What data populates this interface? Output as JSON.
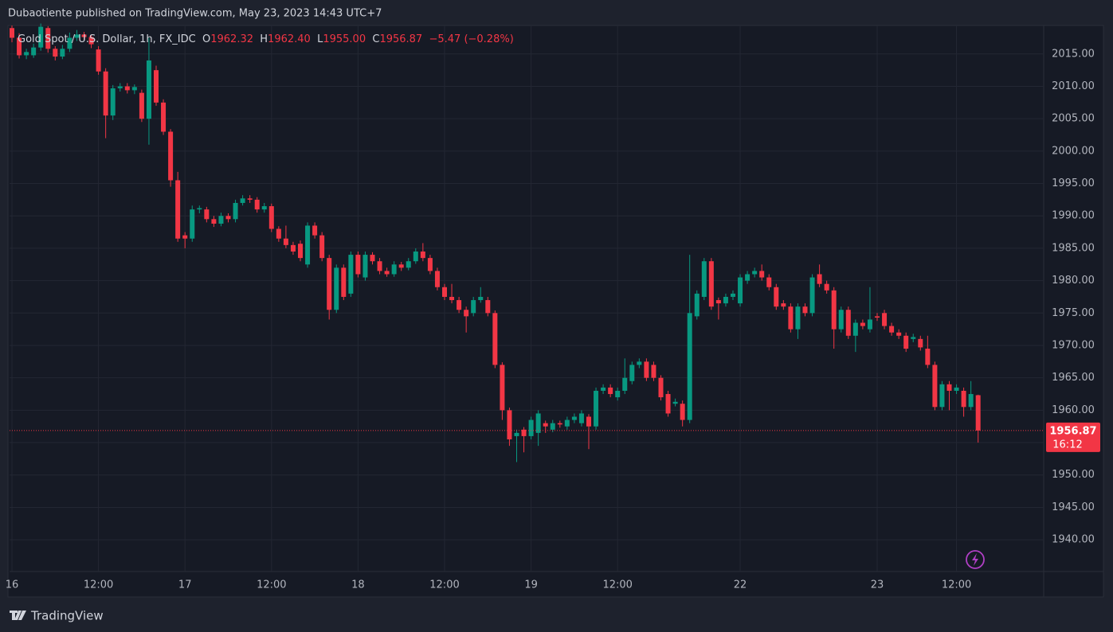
{
  "header": {
    "published": "Dubaotiente published on TradingView.com, May 23, 2023 14:43 UTC+7"
  },
  "footer": {
    "brand": "TradingView"
  },
  "chart_data": {
    "type": "candlestick",
    "legend": {
      "symbol": "Gold Spot / U.S. Dollar, 1h, FX_IDC",
      "o_label": "O",
      "o": "1962.32",
      "h_label": "H",
      "h": "1962.40",
      "l_label": "L",
      "l": "1955.00",
      "c_label": "C",
      "c": "1956.87",
      "change": "−5.47 (−0.28%)"
    },
    "countdown": "16:12",
    "up_color": "#089981",
    "down_color": "#f23645",
    "grid": true,
    "ylim": [
      1935.1,
      2019.4
    ],
    "yticks": [
      {
        "value": 1940,
        "label": "1940.00"
      },
      {
        "value": 1945,
        "label": "1945.00"
      },
      {
        "value": 1950,
        "label": "1950.00"
      },
      {
        "value": 1955,
        "label": "1955.00"
      },
      {
        "value": 1960,
        "label": "1960.00"
      },
      {
        "value": 1965,
        "label": "1965.00"
      },
      {
        "value": 1970,
        "label": "1970.00"
      },
      {
        "value": 1975,
        "label": "1975.00"
      },
      {
        "value": 1980,
        "label": "1980.00"
      },
      {
        "value": 1985,
        "label": "1985.00"
      },
      {
        "value": 1990,
        "label": "1990.00"
      },
      {
        "value": 1995,
        "label": "1995.00"
      },
      {
        "value": 2000,
        "label": "2000.00"
      },
      {
        "value": 2005,
        "label": "2005.00"
      },
      {
        "value": 2010,
        "label": "2010.00"
      },
      {
        "value": 2015,
        "label": "2015.00"
      }
    ],
    "categories": [
      "16",
      null,
      null,
      null,
      null,
      null,
      null,
      null,
      null,
      null,
      null,
      null,
      "12:00",
      null,
      null,
      null,
      null,
      null,
      null,
      null,
      null,
      null,
      null,
      null,
      "17",
      null,
      null,
      null,
      null,
      null,
      null,
      null,
      null,
      null,
      null,
      null,
      "12:00",
      null,
      null,
      null,
      null,
      null,
      null,
      null,
      null,
      null,
      null,
      null,
      "18",
      null,
      null,
      null,
      null,
      null,
      null,
      null,
      null,
      null,
      null,
      null,
      "12:00",
      null,
      null,
      null,
      null,
      null,
      null,
      null,
      null,
      null,
      null,
      null,
      "19",
      null,
      null,
      null,
      null,
      null,
      null,
      null,
      null,
      null,
      null,
      null,
      "12:00",
      null,
      null,
      null,
      null,
      null,
      null,
      null,
      null,
      null,
      null,
      null,
      null,
      null,
      null,
      null,
      null,
      "22",
      null,
      null,
      null,
      null,
      null,
      null,
      null,
      null,
      null,
      null,
      null,
      null,
      null,
      null,
      null,
      null,
      null,
      null,
      "23",
      null,
      null,
      null,
      null,
      null,
      null,
      null,
      null,
      null,
      null,
      "12:00",
      null,
      null,
      null
    ],
    "open": [
      2019.0,
      2017.5,
      2014.8,
      2014.8,
      2016.0,
      2019.0,
      2015.8,
      2014.6,
      2015.8,
      2017.5,
      2018.0,
      2017.6,
      2015.7,
      2012.3,
      2005.5,
      2009.7,
      2010.0,
      2009.4,
      2009.0,
      2005.0,
      2012.5,
      2007.5,
      2003.0,
      1995.5,
      1987.0,
      1986.5,
      1991.0,
      1991.0,
      1989.5,
      1988.8,
      1990.0,
      1989.5,
      1992.0,
      1992.7,
      1992.5,
      1991.0,
      1991.5,
      1988.0,
      1986.5,
      1985.5,
      1985.7,
      1982.5,
      1988.5,
      1987.0,
      1983.5,
      1975.5,
      1982.0,
      1978.0,
      1984.0,
      1980.5,
      1984.0,
      1983.0,
      1981.5,
      1981.0,
      1982.5,
      1982.0,
      1983.0,
      1984.5,
      1983.5,
      1981.5,
      1979.0,
      1977.5,
      1977.0,
      1975.5,
      1975.0,
      1977.0,
      1977.0,
      1975.0,
      1967.0,
      1960.0,
      1956.0,
      1957.0,
      1956.0,
      1956.5,
      1958.0,
      1957.0,
      1958.0,
      1957.5,
      1958.5,
      1958.0,
      1959.0,
      1957.5,
      1963.0,
      1963.5,
      1962.0,
      1963.0,
      1964.5,
      1967.0,
      1967.5,
      1967.0,
      1965.0,
      1962.5,
      1961.0,
      1961.0,
      1958.5,
      1974.5,
      1977.5,
      1983.0,
      1977.0,
      1976.5,
      1977.5,
      1976.5,
      1980.0,
      1981.0,
      1981.5,
      1980.5,
      1979.0,
      1976.5,
      1976.0,
      1972.5,
      1976.0,
      1975.0,
      1981.0,
      1979.5,
      1978.5,
      1972.5,
      1975.5,
      1971.5,
      1973.5,
      1972.5,
      1974.5,
      1975.0,
      1973.0,
      1972.0,
      1971.5,
      1971.0,
      1971.0,
      1969.5,
      1967.0,
      1960.5,
      1964.0,
      1963.0,
      1963.0,
      1960.5,
      1962.32
    ],
    "high": [
      2019.4,
      2018.2,
      2015.8,
      2016.6,
      2019.7,
      2019.3,
      2016.2,
      2016.4,
      2018.3,
      2018.7,
      2018.4,
      2017.9,
      2016.2,
      2012.8,
      2010.2,
      2010.5,
      2010.5,
      2010.3,
      2009.5,
      2017.5,
      2013.2,
      2008.0,
      2003.4,
      1996.8,
      1987.5,
      1991.6,
      1991.6,
      1991.4,
      1990.0,
      1990.5,
      1990.4,
      1992.5,
      1993.2,
      1993.2,
      1992.9,
      1992.0,
      1991.9,
      1988.4,
      1988.5,
      1986.0,
      1986.2,
      1989.0,
      1989.0,
      1987.5,
      1984.0,
      1982.5,
      1982.5,
      1984.5,
      1984.5,
      1984.5,
      1984.4,
      1983.5,
      1982.0,
      1983.0,
      1982.9,
      1983.5,
      1985.0,
      1985.8,
      1984.0,
      1982.0,
      1979.5,
      1979.5,
      1977.5,
      1976.0,
      1977.5,
      1979.0,
      1977.5,
      1975.4,
      1967.4,
      1960.4,
      1957.0,
      1957.4,
      1959.0,
      1960.0,
      1958.4,
      1958.5,
      1958.4,
      1959.0,
      1959.5,
      1960.0,
      1959.4,
      1963.5,
      1964.0,
      1964.0,
      1963.5,
      1968.0,
      1967.5,
      1968.0,
      1968.0,
      1967.5,
      1965.4,
      1963.0,
      1961.8,
      1961.5,
      1984.0,
      1978.5,
      1983.5,
      1983.5,
      1977.4,
      1978.0,
      1978.5,
      1981.0,
      1981.5,
      1982.0,
      1982.5,
      1981.0,
      1979.5,
      1977.0,
      1976.5,
      1976.5,
      1976.5,
      1981.0,
      1982.5,
      1980.0,
      1979.0,
      1976.0,
      1976.0,
      1974.0,
      1974.0,
      1979.0,
      1975.0,
      1975.5,
      1973.5,
      1972.5,
      1972.0,
      1971.8,
      1971.5,
      1971.5,
      1967.5,
      1964.5,
      1964.5,
      1964.0,
      1963.5,
      1964.5,
      1962.4
    ],
    "low": [
      2016.8,
      2014.3,
      2014.2,
      2014.4,
      2015.5,
      2015.2,
      2014.0,
      2014.2,
      2015.3,
      2017.0,
      2017.1,
      2015.9,
      2011.8,
      2002.0,
      2004.8,
      2009.2,
      2008.9,
      2008.8,
      2004.5,
      2001.0,
      2007.0,
      2002.5,
      1994.5,
      1986.0,
      1985.0,
      1986.0,
      1990.4,
      1989.0,
      1988.3,
      1988.4,
      1989.0,
      1989.0,
      1991.6,
      1992.0,
      1990.5,
      1990.5,
      1987.5,
      1986.0,
      1985.0,
      1984.0,
      1983.0,
      1982.0,
      1986.5,
      1983.0,
      1974.0,
      1975.0,
      1977.0,
      1977.5,
      1980.5,
      1980.0,
      1982.5,
      1981.0,
      1980.6,
      1980.6,
      1981.5,
      1981.6,
      1982.6,
      1983.0,
      1981.0,
      1978.5,
      1977.0,
      1976.5,
      1975.0,
      1972.0,
      1974.5,
      1976.6,
      1974.5,
      1966.5,
      1958.5,
      1954.5,
      1952.0,
      1953.5,
      1955.5,
      1954.5,
      1956.5,
      1956.6,
      1957.3,
      1957.0,
      1958.0,
      1957.5,
      1954.0,
      1957.0,
      1962.5,
      1962.0,
      1961.5,
      1962.5,
      1964.0,
      1966.5,
      1964.5,
      1964.5,
      1961.5,
      1959.0,
      1960.6,
      1957.5,
      1958.0,
      1974.0,
      1977.0,
      1975.5,
      1974.0,
      1976.0,
      1977.0,
      1976.0,
      1979.5,
      1980.5,
      1980.0,
      1978.5,
      1975.5,
      1975.5,
      1972.0,
      1971.0,
      1974.5,
      1974.5,
      1979.0,
      1978.0,
      1969.5,
      1972.0,
      1971.0,
      1969.0,
      1972.5,
      1972.0,
      1973.8,
      1972.5,
      1971.5,
      1971.0,
      1969.0,
      1970.5,
      1969.2,
      1966.5,
      1960.0,
      1960.0,
      1960.0,
      1962.5,
      1959.0,
      1960.0,
      1955.0
    ],
    "close": [
      2017.5,
      2014.8,
      2015.3,
      2016.0,
      2019.2,
      2015.8,
      2014.6,
      2015.8,
      2017.5,
      2018.0,
      2017.6,
      2016.5,
      2012.3,
      2005.5,
      2009.7,
      2010.0,
      2009.4,
      2009.9,
      2005.0,
      2014.0,
      2007.5,
      2003.0,
      1995.5,
      1986.5,
      1986.5,
      1991.0,
      1991.2,
      1989.5,
      1988.8,
      1990.0,
      1989.5,
      1992.0,
      1992.7,
      1992.5,
      1991.0,
      1991.5,
      1988.0,
      1986.5,
      1985.5,
      1984.5,
      1983.5,
      1988.5,
      1987.0,
      1983.5,
      1975.5,
      1982.0,
      1977.5,
      1984.0,
      1981.0,
      1984.0,
      1983.0,
      1981.5,
      1981.0,
      1982.5,
      1982.0,
      1983.0,
      1984.5,
      1983.5,
      1981.5,
      1979.0,
      1977.5,
      1977.0,
      1975.5,
      1974.5,
      1977.0,
      1977.5,
      1975.0,
      1967.0,
      1960.0,
      1955.5,
      1956.5,
      1956.0,
      1958.5,
      1959.5,
      1957.5,
      1958.0,
      1957.8,
      1958.5,
      1959.0,
      1959.5,
      1957.5,
      1963.0,
      1963.5,
      1962.5,
      1963.0,
      1965.0,
      1967.0,
      1967.5,
      1965.0,
      1965.0,
      1962.0,
      1959.5,
      1961.3,
      1958.5,
      1975.0,
      1978.0,
      1983.0,
      1976.0,
      1976.5,
      1977.5,
      1978.0,
      1980.5,
      1981.0,
      1981.5,
      1980.5,
      1979.0,
      1976.0,
      1976.0,
      1972.5,
      1976.0,
      1975.0,
      1980.5,
      1979.5,
      1978.5,
      1972.5,
      1975.5,
      1971.5,
      1973.5,
      1973.0,
      1974.0,
      1974.3,
      1973.0,
      1972.0,
      1971.5,
      1969.5,
      1971.3,
      1969.7,
      1967.0,
      1960.5,
      1964.0,
      1963.0,
      1963.5,
      1960.5,
      1962.5,
      1956.87
    ]
  }
}
